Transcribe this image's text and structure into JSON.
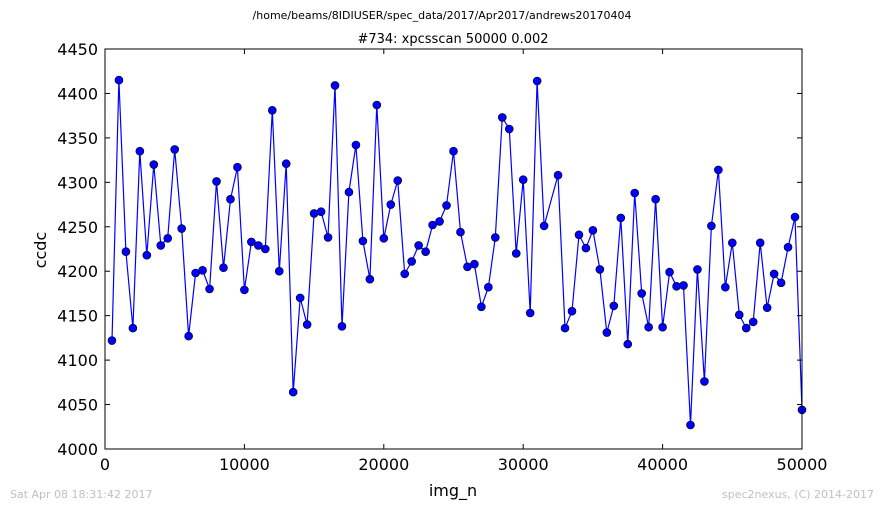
{
  "header": {
    "path": "/home/beams/8IDIUSER/spec_data/2017/Apr2017/andrews20170404"
  },
  "footer": {
    "timestamp": "Sat Apr 08 18:31:42 2017",
    "credit": "spec2nexus, (C) 2014-2017"
  },
  "chart_data": {
    "type": "line",
    "title": "#734: xpcsscan 50000 0.002",
    "xlabel": "img_n",
    "ylabel": "ccdc",
    "xlim": [
      0,
      50000
    ],
    "ylim": [
      4000,
      4450
    ],
    "xticks": [
      0,
      10000,
      20000,
      30000,
      40000,
      50000
    ],
    "yticks": [
      4000,
      4050,
      4100,
      4150,
      4200,
      4250,
      4300,
      4350,
      4400,
      4450
    ],
    "grid": false,
    "legend": "none",
    "colors": {
      "line": "#0000ff",
      "marker": "#0000ff"
    },
    "series": [
      {
        "x": [
          500,
          1000,
          1500,
          2000,
          2500,
          3000,
          3500,
          4000,
          4500,
          5000,
          5500,
          6000,
          6500,
          7000,
          7500,
          8000,
          8500,
          9000,
          9500,
          10000,
          10500,
          11000,
          11500,
          12000,
          12500,
          13000,
          13500,
          14000,
          14500,
          15000,
          15500,
          16000,
          16500,
          17000,
          17500,
          18000,
          18500,
          19000,
          19500,
          20000,
          20500,
          21000,
          21500,
          22000,
          22500,
          23000,
          23500,
          24000,
          24500,
          25000,
          25500,
          26000,
          26500,
          27000,
          27500,
          28000,
          28500,
          29000,
          29500,
          30000,
          30500,
          31000,
          31500,
          32500,
          33000,
          33500,
          34000,
          34500,
          35000,
          35500,
          36000,
          36500,
          37000,
          37500,
          38000,
          38500,
          39000,
          39500,
          40000,
          40500,
          41000,
          41500,
          42000,
          42500,
          43000,
          43500,
          44000,
          44500,
          45000,
          45500,
          46000,
          46500,
          47000,
          47500,
          48000,
          48500,
          49000,
          49500,
          50000
        ],
        "values": [
          4122,
          4415,
          4222,
          4136,
          4335,
          4218,
          4320,
          4229,
          4237,
          4337,
          4248,
          4127,
          4198,
          4201,
          4180,
          4301,
          4204,
          4281,
          4317,
          4179,
          4233,
          4229,
          4225,
          4381,
          4200,
          4321,
          4064,
          4170,
          4140,
          4265,
          4267,
          4238,
          4409,
          4138,
          4289,
          4342,
          4234,
          4191,
          4387,
          4237,
          4275,
          4302,
          4197,
          4211,
          4229,
          4222,
          4252,
          4256,
          4274,
          4335,
          4244,
          4205,
          4208,
          4160,
          4182,
          4238,
          4373,
          4360,
          4220,
          4303,
          4153,
          4414,
          4251,
          4308,
          4136,
          4155,
          4241,
          4226,
          4246,
          4202,
          4131,
          4161,
          4260,
          4118,
          4288,
          4175,
          4137,
          4281,
          4137,
          4199,
          4183,
          4184,
          4027,
          4202,
          4076,
          4251,
          4314,
          4182,
          4232,
          4151,
          4136,
          4143,
          4232,
          4159,
          4197,
          4187,
          4227,
          4261,
          4044
        ]
      }
    ]
  }
}
